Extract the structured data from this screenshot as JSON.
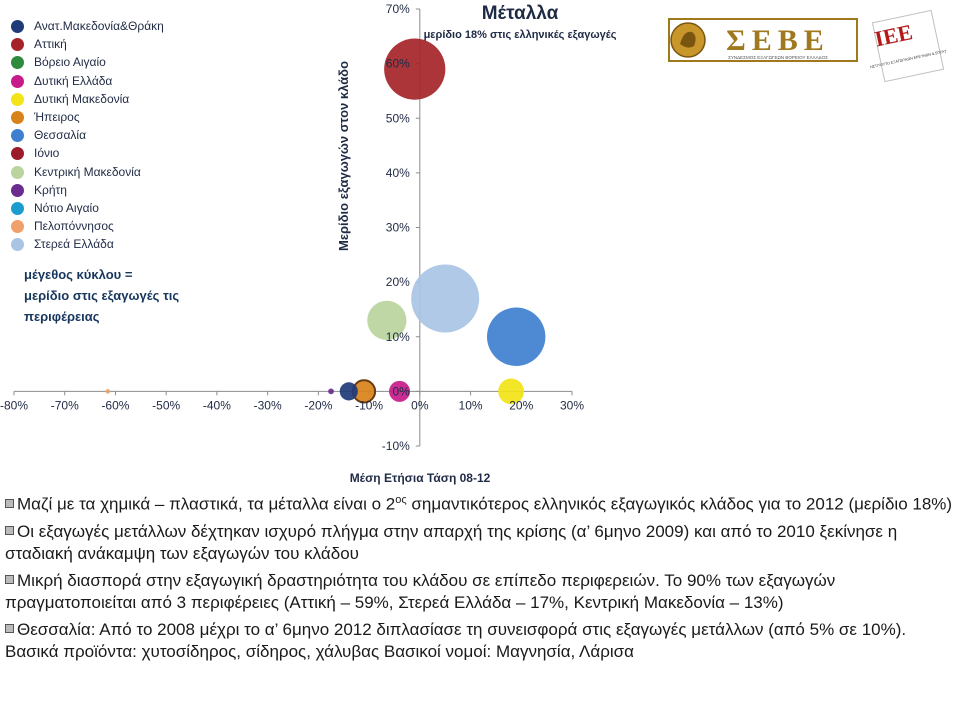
{
  "legend": {
    "items": [
      {
        "name": "Ανατ.Μακεδονία&Θράκη",
        "color": "#1f3b78"
      },
      {
        "name": "Αττική",
        "color": "#a52428"
      },
      {
        "name": "Βόρειο Αιγαίο",
        "color": "#2e8b3e"
      },
      {
        "name": "Δυτική Ελλάδα",
        "color": "#c71b8a"
      },
      {
        "name": "Δυτική Μακεδονία",
        "color": "#f2e416"
      },
      {
        "name": "Ήπειρος",
        "color": "#d98219"
      },
      {
        "name": "Θεσσαλία",
        "color": "#3f7fcf"
      },
      {
        "name": "Ιόνιο",
        "color": "#9b1b2a"
      },
      {
        "name": "Κεντρική Μακεδονία",
        "color": "#b9d49c"
      },
      {
        "name": "Κρήτη",
        "color": "#6a2c8f"
      },
      {
        "name": "Νότιο Αιγαίο",
        "color": "#1b9ccf"
      },
      {
        "name": "Πελοπόννησος",
        "color": "#f0a06a"
      },
      {
        "name": "Στερεά Ελλάδα",
        "color": "#a9c4e4"
      }
    ]
  },
  "size_note": {
    "line1": "μέγεθος κύκλου =",
    "line2": "μερίδιο στις εξαγωγές τις",
    "line3": "περιφέρειας"
  },
  "chart_data": {
    "type": "scatter",
    "title": "Μέταλλα",
    "subtitle": "μερίδιο 18% στις ελληνικές εξαγωγές",
    "xlabel": "Μέση Ετήσια Τάση 08-12",
    "ylabel": "Μερίδιο εξαγωγών στον κλάδο",
    "xlim": [
      -0.8,
      0.3
    ],
    "ylim": [
      -0.1,
      0.7
    ],
    "x_ticks": [
      -0.8,
      -0.7,
      -0.6,
      -0.5,
      -0.4,
      -0.3,
      -0.2,
      -0.1,
      0,
      0.1,
      0.2,
      0.3
    ],
    "x_tick_labels": [
      "-80%",
      "-70%",
      "-60%",
      "-50%",
      "-40%",
      "-30%",
      "-20%",
      "-10%",
      "0%",
      "10%",
      "20%",
      "30%"
    ],
    "y_ticks": [
      -0.1,
      0,
      0.1,
      0.2,
      0.3,
      0.4,
      0.5,
      0.6,
      0.7
    ],
    "y_tick_labels": [
      "-10%",
      "0%",
      "10%",
      "20%",
      "30%",
      "40%",
      "50%",
      "60%",
      "70%"
    ],
    "grid": false,
    "points": [
      {
        "series": "Αττική",
        "x": -0.01,
        "y": 0.59,
        "size": 0.34,
        "color": "#a52428"
      },
      {
        "series": "Στερεά Ελλάδα",
        "x": 0.05,
        "y": 0.17,
        "size": 0.42,
        "color": "#a9c4e4"
      },
      {
        "series": "Θεσσαλία",
        "x": 0.19,
        "y": 0.1,
        "size": 0.31,
        "color": "#3f7fcf"
      },
      {
        "series": "Κεντρική Μακεδονία",
        "x": -0.065,
        "y": 0.13,
        "size": 0.14,
        "color": "#b9d49c"
      },
      {
        "series": "Δυτική Μακεδονία",
        "x": 0.18,
        "y": 0.0,
        "size": 0.06,
        "color": "#f2e416"
      },
      {
        "series": "Δυτική Ελλάδα",
        "x": -0.04,
        "y": 0.0,
        "size": 0.04,
        "color": "#c71b8a"
      },
      {
        "series": "Ήπειρος",
        "x": -0.11,
        "y": 0.0,
        "size": 0.045,
        "color": "#d98219"
      },
      {
        "series": "Ανατ.Μακεδονία&Θράκη",
        "x": -0.14,
        "y": 0.0,
        "size": 0.03,
        "color": "#1f3b78"
      },
      {
        "series": "Κρήτη",
        "x": -0.175,
        "y": 0.0,
        "size": 0.003,
        "color": "#6a2c8f"
      },
      {
        "series": "Πελοπόννησος",
        "x": -0.615,
        "y": 0.0,
        "size": 0.002,
        "color": "#f0a06a"
      }
    ]
  },
  "logos": {
    "sebe_text": "ΣΕΒΕ",
    "sebe_sub": "ΣΥΝΔΕΣΜΟΣ ΕΞΑΓΩΓΕΩΝ ΒΟΡΕΙΟΥ ΕΛΛΑΔΟΣ",
    "iee_text": "ΙΕΕ",
    "iee_sub": "ΙΝΣΤΙΤΟΥΤΟ ΕΞΑΓΩΓΙΚΩΝ ΕΡΕΥΝΩΝ & ΣΠΟΥΔΩΝ"
  },
  "bullets": [
    {
      "text_a": "Μαζί με τα χημικά – πλαστικά, τα μέταλλα είναι ο 2",
      "sup": "ος",
      "text_b": " σημαντικότερος ελληνικός εξαγωγικός κλάδος για το 2012 (μερίδιο 18%)"
    },
    {
      "text_a": "Οι εξαγωγές μετάλλων δέχτηκαν ισχυρό πλήγμα στην απαρχή της κρίσης (α’ 6μηνο 2009) και από το 2010 ξεκίνησε η σταδιακή ανάκαμψη των εξαγωγών του κλάδου",
      "sup": "",
      "text_b": ""
    },
    {
      "text_a": "Μικρή διασπορά στην εξαγωγική δραστηριότητα του κλάδου σε επίπεδο περιφερειών. Το 90% των εξαγωγών πραγματοποιείται από 3 περιφέρειες (Αττική – 59%, Στερεά Ελλάδα – 17%, Κεντρική Μακεδονία – 13%)",
      "sup": "",
      "text_b": ""
    },
    {
      "text_a": "Θεσσαλία: Από το 2008 μέχρι το α’ 6μηνο 2012 διπλασίασε τη συνεισφορά στις εξαγωγές μετάλλων (από 5% σε 10%). Βασικά προϊόντα: χυτοσίδηρος, σίδηρος, χάλυβας Βασικοί νομοί: Μαγνησία, Λάρισα",
      "sup": "",
      "text_b": ""
    }
  ]
}
